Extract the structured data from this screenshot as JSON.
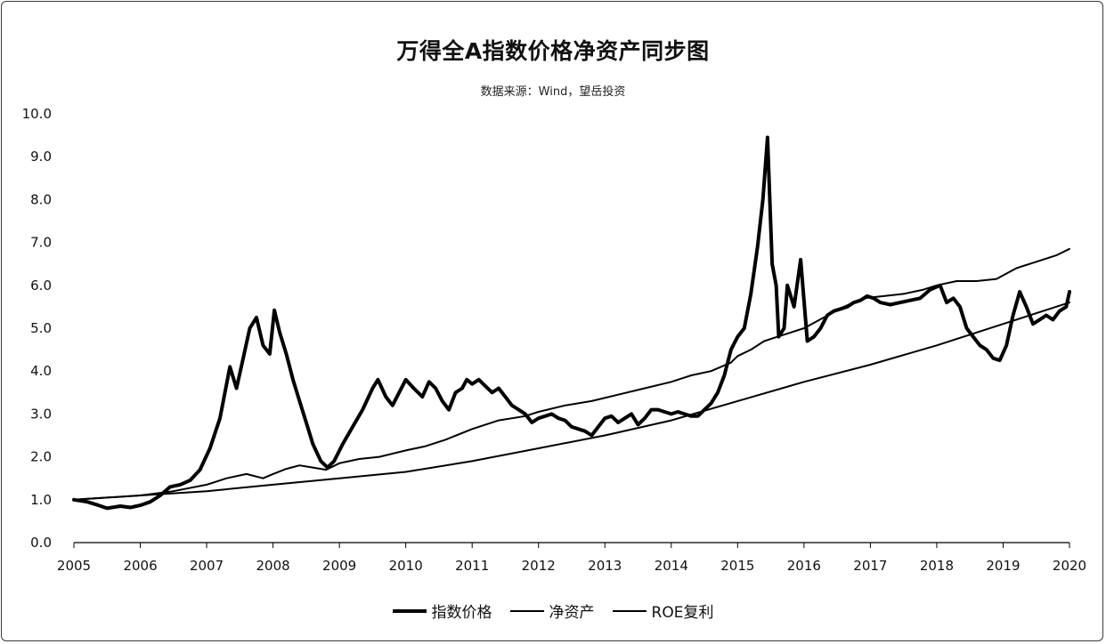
{
  "chart_data": {
    "type": "line",
    "title": "万得全A指数价格净资产同步图",
    "subtitle": "数据来源：Wind，望岳投资",
    "xlabel": "",
    "ylabel": "",
    "xlim": [
      2005,
      2020
    ],
    "ylim": [
      0,
      10
    ],
    "x_ticks": [
      "2005",
      "2006",
      "2007",
      "2008",
      "2009",
      "2010",
      "2011",
      "2012",
      "2013",
      "2014",
      "2015",
      "2016",
      "2017",
      "2018",
      "2019",
      "2020"
    ],
    "y_ticks": [
      "0.0",
      "1.0",
      "2.0",
      "3.0",
      "4.0",
      "5.0",
      "6.0",
      "7.0",
      "8.0",
      "9.0",
      "10.0"
    ],
    "grid": false,
    "legend_position": "bottom",
    "series": [
      {
        "name": "指数价格",
        "color": "#000000",
        "points": [
          [
            2005.0,
            1.0
          ],
          [
            2005.2,
            0.95
          ],
          [
            2005.35,
            0.88
          ],
          [
            2005.5,
            0.8
          ],
          [
            2005.7,
            0.85
          ],
          [
            2005.85,
            0.82
          ],
          [
            2006.0,
            0.87
          ],
          [
            2006.15,
            0.95
          ],
          [
            2006.3,
            1.1
          ],
          [
            2006.45,
            1.3
          ],
          [
            2006.6,
            1.35
          ],
          [
            2006.75,
            1.45
          ],
          [
            2006.9,
            1.7
          ],
          [
            2007.05,
            2.2
          ],
          [
            2007.2,
            2.9
          ],
          [
            2007.35,
            4.1
          ],
          [
            2007.45,
            3.6
          ],
          [
            2007.55,
            4.3
          ],
          [
            2007.65,
            5.0
          ],
          [
            2007.75,
            5.25
          ],
          [
            2007.85,
            4.6
          ],
          [
            2007.95,
            4.4
          ],
          [
            2008.02,
            5.42
          ],
          [
            2008.1,
            4.9
          ],
          [
            2008.2,
            4.4
          ],
          [
            2008.3,
            3.8
          ],
          [
            2008.4,
            3.3
          ],
          [
            2008.5,
            2.8
          ],
          [
            2008.6,
            2.3
          ],
          [
            2008.72,
            1.9
          ],
          [
            2008.82,
            1.75
          ],
          [
            2008.92,
            1.9
          ],
          [
            2009.05,
            2.3
          ],
          [
            2009.2,
            2.7
          ],
          [
            2009.35,
            3.1
          ],
          [
            2009.5,
            3.6
          ],
          [
            2009.58,
            3.8
          ],
          [
            2009.7,
            3.4
          ],
          [
            2009.8,
            3.2
          ],
          [
            2009.9,
            3.5
          ],
          [
            2010.0,
            3.8
          ],
          [
            2010.12,
            3.6
          ],
          [
            2010.25,
            3.4
          ],
          [
            2010.35,
            3.75
          ],
          [
            2010.45,
            3.6
          ],
          [
            2010.55,
            3.3
          ],
          [
            2010.65,
            3.1
          ],
          [
            2010.75,
            3.5
          ],
          [
            2010.85,
            3.6
          ],
          [
            2010.92,
            3.8
          ],
          [
            2011.0,
            3.7
          ],
          [
            2011.1,
            3.8
          ],
          [
            2011.2,
            3.65
          ],
          [
            2011.3,
            3.5
          ],
          [
            2011.4,
            3.6
          ],
          [
            2011.5,
            3.4
          ],
          [
            2011.6,
            3.2
          ],
          [
            2011.7,
            3.1
          ],
          [
            2011.8,
            3.0
          ],
          [
            2011.9,
            2.8
          ],
          [
            2012.0,
            2.9
          ],
          [
            2012.1,
            2.95
          ],
          [
            2012.2,
            3.0
          ],
          [
            2012.3,
            2.9
          ],
          [
            2012.4,
            2.85
          ],
          [
            2012.5,
            2.7
          ],
          [
            2012.6,
            2.65
          ],
          [
            2012.7,
            2.6
          ],
          [
            2012.8,
            2.5
          ],
          [
            2012.9,
            2.7
          ],
          [
            2013.0,
            2.9
          ],
          [
            2013.1,
            2.95
          ],
          [
            2013.2,
            2.8
          ],
          [
            2013.3,
            2.9
          ],
          [
            2013.4,
            3.0
          ],
          [
            2013.5,
            2.75
          ],
          [
            2013.6,
            2.9
          ],
          [
            2013.7,
            3.1
          ],
          [
            2013.8,
            3.1
          ],
          [
            2013.9,
            3.05
          ],
          [
            2014.0,
            3.0
          ],
          [
            2014.1,
            3.05
          ],
          [
            2014.2,
            3.0
          ],
          [
            2014.3,
            2.95
          ],
          [
            2014.4,
            2.95
          ],
          [
            2014.5,
            3.1
          ],
          [
            2014.6,
            3.25
          ],
          [
            2014.7,
            3.5
          ],
          [
            2014.8,
            3.9
          ],
          [
            2014.9,
            4.5
          ],
          [
            2015.0,
            4.8
          ],
          [
            2015.1,
            5.0
          ],
          [
            2015.2,
            5.8
          ],
          [
            2015.3,
            6.9
          ],
          [
            2015.38,
            8.0
          ],
          [
            2015.45,
            9.45
          ],
          [
            2015.52,
            6.5
          ],
          [
            2015.58,
            6.0
          ],
          [
            2015.62,
            4.8
          ],
          [
            2015.7,
            5.0
          ],
          [
            2015.75,
            6.0
          ],
          [
            2015.85,
            5.5
          ],
          [
            2015.95,
            6.6
          ],
          [
            2016.05,
            4.7
          ],
          [
            2016.15,
            4.8
          ],
          [
            2016.25,
            5.0
          ],
          [
            2016.35,
            5.3
          ],
          [
            2016.45,
            5.4
          ],
          [
            2016.55,
            5.45
          ],
          [
            2016.65,
            5.5
          ],
          [
            2016.75,
            5.6
          ],
          [
            2016.85,
            5.65
          ],
          [
            2016.95,
            5.75
          ],
          [
            2017.05,
            5.7
          ],
          [
            2017.15,
            5.6
          ],
          [
            2017.3,
            5.55
          ],
          [
            2017.45,
            5.6
          ],
          [
            2017.6,
            5.65
          ],
          [
            2017.75,
            5.7
          ],
          [
            2017.9,
            5.9
          ],
          [
            2018.05,
            6.0
          ],
          [
            2018.15,
            5.6
          ],
          [
            2018.25,
            5.7
          ],
          [
            2018.35,
            5.5
          ],
          [
            2018.45,
            5.0
          ],
          [
            2018.55,
            4.8
          ],
          [
            2018.65,
            4.6
          ],
          [
            2018.75,
            4.5
          ],
          [
            2018.85,
            4.3
          ],
          [
            2018.95,
            4.25
          ],
          [
            2019.05,
            4.6
          ],
          [
            2019.15,
            5.3
          ],
          [
            2019.25,
            5.85
          ],
          [
            2019.35,
            5.5
          ],
          [
            2019.45,
            5.1
          ],
          [
            2019.55,
            5.2
          ],
          [
            2019.65,
            5.3
          ],
          [
            2019.75,
            5.2
          ],
          [
            2019.85,
            5.4
          ],
          [
            2019.95,
            5.5
          ],
          [
            2020.0,
            5.85
          ]
        ]
      },
      {
        "name": "净资产",
        "color": "#000000",
        "points": [
          [
            2005.0,
            1.0
          ],
          [
            2005.5,
            1.05
          ],
          [
            2006.0,
            1.1
          ],
          [
            2006.5,
            1.2
          ],
          [
            2007.0,
            1.35
          ],
          [
            2007.3,
            1.5
          ],
          [
            2007.6,
            1.6
          ],
          [
            2007.85,
            1.5
          ],
          [
            2008.0,
            1.6
          ],
          [
            2008.2,
            1.72
          ],
          [
            2008.4,
            1.8
          ],
          [
            2008.6,
            1.75
          ],
          [
            2008.8,
            1.7
          ],
          [
            2009.0,
            1.85
          ],
          [
            2009.3,
            1.95
          ],
          [
            2009.6,
            2.0
          ],
          [
            2010.0,
            2.15
          ],
          [
            2010.3,
            2.25
          ],
          [
            2010.6,
            2.4
          ],
          [
            2011.0,
            2.65
          ],
          [
            2011.4,
            2.85
          ],
          [
            2011.8,
            2.95
          ],
          [
            2012.0,
            3.05
          ],
          [
            2012.4,
            3.2
          ],
          [
            2012.8,
            3.3
          ],
          [
            2013.2,
            3.45
          ],
          [
            2013.6,
            3.6
          ],
          [
            2014.0,
            3.75
          ],
          [
            2014.3,
            3.9
          ],
          [
            2014.6,
            4.0
          ],
          [
            2014.9,
            4.2
          ],
          [
            2015.0,
            4.35
          ],
          [
            2015.2,
            4.5
          ],
          [
            2015.4,
            4.7
          ],
          [
            2015.6,
            4.8
          ],
          [
            2015.8,
            4.9
          ],
          [
            2016.0,
            5.0
          ],
          [
            2016.3,
            5.25
          ],
          [
            2016.6,
            5.5
          ],
          [
            2016.9,
            5.7
          ],
          [
            2017.2,
            5.75
          ],
          [
            2017.5,
            5.8
          ],
          [
            2017.8,
            5.9
          ],
          [
            2018.0,
            6.0
          ],
          [
            2018.3,
            6.1
          ],
          [
            2018.6,
            6.1
          ],
          [
            2018.9,
            6.15
          ],
          [
            2019.2,
            6.4
          ],
          [
            2019.5,
            6.55
          ],
          [
            2019.8,
            6.7
          ],
          [
            2020.0,
            6.85
          ]
        ]
      },
      {
        "name": "ROE复利",
        "color": "#000000",
        "points": [
          [
            2005.0,
            1.0
          ],
          [
            2006.0,
            1.1
          ],
          [
            2007.0,
            1.2
          ],
          [
            2008.0,
            1.35
          ],
          [
            2009.0,
            1.5
          ],
          [
            2010.0,
            1.65
          ],
          [
            2011.0,
            1.9
          ],
          [
            2012.0,
            2.2
          ],
          [
            2013.0,
            2.5
          ],
          [
            2014.0,
            2.85
          ],
          [
            2015.0,
            3.3
          ],
          [
            2016.0,
            3.75
          ],
          [
            2017.0,
            4.15
          ],
          [
            2018.0,
            4.6
          ],
          [
            2019.0,
            5.1
          ],
          [
            2020.0,
            5.6
          ]
        ]
      }
    ]
  }
}
